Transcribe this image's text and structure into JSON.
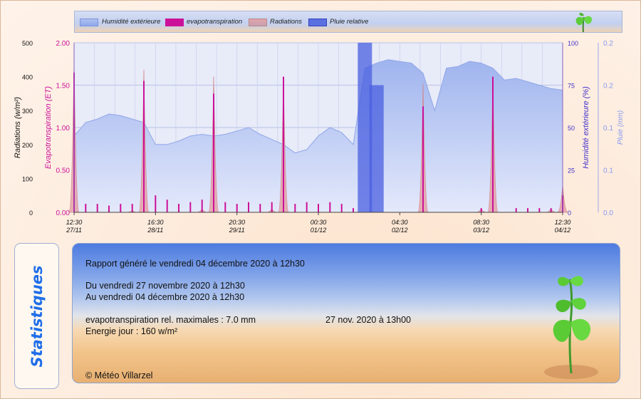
{
  "legend": {
    "items": [
      {
        "label": "Humidité extérieure",
        "color": "#9fb6ee"
      },
      {
        "label": "evapotranspiration",
        "color": "#cc1199"
      },
      {
        "label": "Radiations",
        "color": "#d99aa0"
      },
      {
        "label": "Pluie relative",
        "color": "#5a6fe0"
      }
    ]
  },
  "chart_data": {
    "type": "area",
    "x": [
      "27/11 12:30",
      "27/11 16:30",
      "27/11 20:30",
      "28/11 00:30",
      "28/11 04:30",
      "28/11 08:30",
      "28/11 12:30",
      "28/11 16:30",
      "28/11 20:30",
      "29/11 00:30",
      "29/11 04:30",
      "29/11 08:30",
      "29/11 12:30",
      "29/11 16:30",
      "29/11 20:30",
      "30/11 00:30",
      "30/11 04:30",
      "30/11 08:30",
      "30/11 12:30",
      "30/11 16:30",
      "30/11 20:30",
      "01/12 00:30",
      "01/12 04:30",
      "01/12 08:30",
      "01/12 12:30",
      "01/12 16:30",
      "01/12 20:30",
      "02/12 00:30",
      "02/12 04:30",
      "02/12 08:30",
      "02/12 12:30",
      "02/12 16:30",
      "02/12 20:30",
      "03/12 00:30",
      "03/12 04:30",
      "03/12 08:30",
      "03/12 12:30",
      "03/12 16:30",
      "03/12 20:30",
      "04/12 00:30",
      "04/12 04:30",
      "04/12 08:30",
      "04/12 12:30"
    ],
    "x_tick_labels": [
      {
        "time": "12:30",
        "date": "27/11"
      },
      {
        "time": "16:30",
        "date": "28/11"
      },
      {
        "time": "20:30",
        "date": "29/11"
      },
      {
        "time": "00:30",
        "date": "01/12"
      },
      {
        "time": "04:30",
        "date": "02/12"
      },
      {
        "time": "08:30",
        "date": "03/12"
      },
      {
        "time": "12:30",
        "date": "04/12"
      }
    ],
    "axes": {
      "radiations": {
        "label": "Radiations (w/m²)",
        "ticks": [
          "500",
          "400",
          "300",
          "200",
          "100",
          "0"
        ],
        "color": "#111111"
      },
      "et": {
        "label": "Evapotranspiration (ET)",
        "ticks": [
          "2.00",
          "1.50",
          "1.00",
          "0.50",
          "0.00"
        ],
        "color": "#cc1199"
      },
      "humidity": {
        "label": "Humidité extérieure (%)",
        "ticks": [
          "100",
          "75",
          "50",
          "25",
          "0"
        ],
        "color": "#4433cc"
      },
      "rain": {
        "label": "Pluie (mm)",
        "ticks": [
          "0.2",
          "0.2",
          "0.1",
          "0.1",
          "0.0"
        ],
        "color": "#8899ee"
      }
    },
    "ylim_radiations": [
      0,
      500
    ],
    "ylim_et": [
      0,
      2
    ],
    "ylim_humidity": [
      0,
      100
    ],
    "ylim_rain": [
      0,
      0.2
    ],
    "series": [
      {
        "name": "Humidité extérieure",
        "axis": "humidity",
        "values": [
          45,
          53,
          55,
          58,
          57,
          55,
          53,
          40,
          40,
          42,
          45,
          46,
          45,
          46,
          48,
          50,
          46,
          43,
          40,
          35,
          37,
          45,
          50,
          47,
          40,
          85,
          88,
          90,
          89,
          88,
          82,
          60,
          85,
          86,
          89,
          88,
          85,
          78,
          79,
          77,
          75,
          73,
          72
        ]
      },
      {
        "name": "Radiations",
        "axis": "radiations",
        "values": [
          440,
          0,
          0,
          0,
          0,
          5,
          420,
          0,
          0,
          0,
          0,
          10,
          400,
          0,
          0,
          0,
          0,
          10,
          400,
          0,
          0,
          0,
          0,
          0,
          0,
          0,
          0,
          0,
          0,
          0,
          380,
          0,
          0,
          0,
          0,
          10,
          400,
          0,
          0,
          0,
          0,
          10,
          80
        ]
      },
      {
        "name": "evapotranspiration",
        "axis": "et",
        "values": [
          1.65,
          0.1,
          0.1,
          0.08,
          0.1,
          0.1,
          1.55,
          0.2,
          0.15,
          0.1,
          0.12,
          0.15,
          1.4,
          0.12,
          0.1,
          0.12,
          0.1,
          0.12,
          1.6,
          0.1,
          0.12,
          0.1,
          0.12,
          0.1,
          0.05,
          0,
          0,
          0,
          0,
          0,
          1.25,
          0,
          0,
          0,
          0,
          0.05,
          1.6,
          0,
          0.05,
          0.05,
          0.05,
          0.05,
          0.2
        ]
      },
      {
        "name": "Pluie relative",
        "axis": "rain",
        "values": [
          0,
          0,
          0,
          0,
          0,
          0,
          0,
          0,
          0,
          0,
          0,
          0,
          0,
          0,
          0,
          0,
          0,
          0,
          0,
          0,
          0,
          0,
          0,
          0,
          0,
          0.2,
          0.15,
          0,
          0,
          0,
          0,
          0,
          0,
          0,
          0,
          0,
          0,
          0,
          0,
          0,
          0,
          0,
          0
        ]
      }
    ],
    "grid": true,
    "legend_position": "top"
  },
  "stats": {
    "side_title": "Statistiques",
    "generated": "Rapport généré le vendredi 04 décembre 2020 à 12h30",
    "from": "Du vendredi 27 novembre 2020 à 12h30",
    "to": "Au vendredi 04 décembre 2020 à 12h30",
    "et_max_label": "evapotranspiration rel. maximales : 7.0 mm",
    "et_max_date": "27 nov. 2020 à 13h00",
    "energy": "Energie jour : 160 w/m²",
    "copyright": "© Météo Villarzel"
  }
}
